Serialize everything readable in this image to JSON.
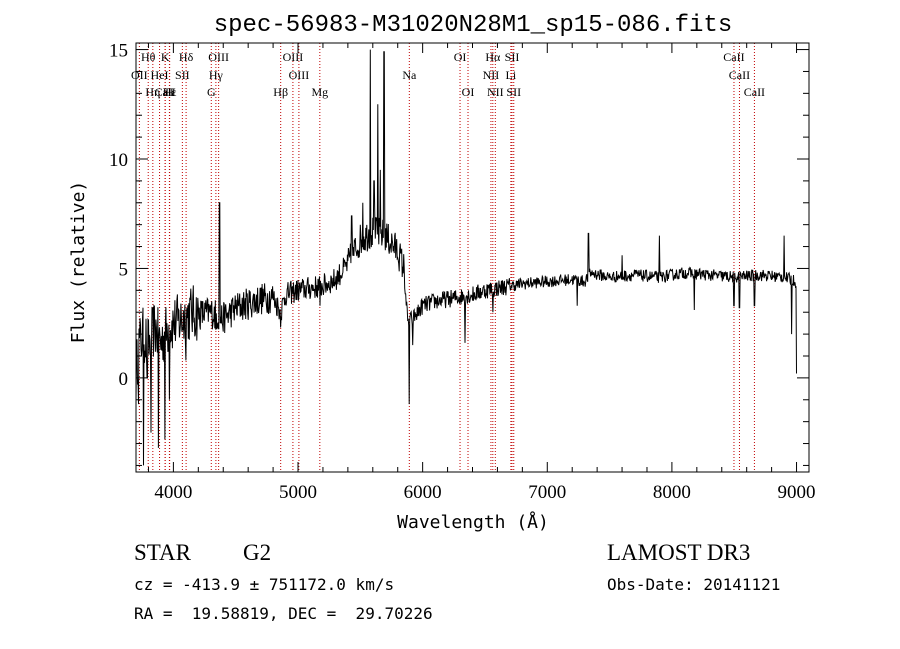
{
  "info": {
    "class_label": "STAR",
    "subclass": "G2",
    "survey": "LAMOST DR3",
    "cz_text": "cz = -413.9 ± 751172.0 km/s",
    "obs_date_text": "Obs-Date: 20141121",
    "radec_text": "RA =  19.58819, DEC =  29.70226"
  },
  "chart_data": {
    "type": "line",
    "title": "spec-56983-M31020N28M1_sp15-086.fits",
    "xlabel": "Wavelength (Å)",
    "ylabel": "Flux (relative)",
    "xlim": [
      3700,
      9100
    ],
    "ylim": [
      -4.3,
      15.3
    ],
    "xticks": [
      4000,
      5000,
      6000,
      7000,
      8000,
      9000
    ],
    "yticks": [
      0,
      5,
      10,
      15
    ],
    "spectrum_anchors": [
      [
        3700,
        0.0
      ],
      [
        3720,
        1.5
      ],
      [
        3760,
        2.0
      ],
      [
        3800,
        1.5
      ],
      [
        3850,
        2.3
      ],
      [
        3900,
        1.6
      ],
      [
        3950,
        2.2
      ],
      [
        4000,
        2.5
      ],
      [
        4050,
        2.6
      ],
      [
        4100,
        2.8
      ],
      [
        4150,
        3.0
      ],
      [
        4200,
        2.9
      ],
      [
        4300,
        3.0
      ],
      [
        4400,
        2.7
      ],
      [
        4500,
        3.2
      ],
      [
        4600,
        3.4
      ],
      [
        4700,
        3.6
      ],
      [
        4800,
        3.7
      ],
      [
        4860,
        3.0
      ],
      [
        4900,
        3.8
      ],
      [
        5000,
        4.0
      ],
      [
        5100,
        4.1
      ],
      [
        5200,
        4.2
      ],
      [
        5300,
        4.5
      ],
      [
        5400,
        5.2
      ],
      [
        5500,
        6.3
      ],
      [
        5600,
        6.7
      ],
      [
        5700,
        6.5
      ],
      [
        5800,
        5.8
      ],
      [
        5850,
        5.0
      ],
      [
        5880,
        2.5
      ],
      [
        5950,
        2.9
      ],
      [
        6000,
        3.3
      ],
      [
        6100,
        3.5
      ],
      [
        6200,
        3.6
      ],
      [
        6300,
        3.7
      ],
      [
        6400,
        3.8
      ],
      [
        6500,
        4.0
      ],
      [
        6600,
        4.1
      ],
      [
        6700,
        4.2
      ],
      [
        6800,
        4.3
      ],
      [
        7000,
        4.4
      ],
      [
        7200,
        4.5
      ],
      [
        7300,
        4.4
      ],
      [
        7350,
        4.8
      ],
      [
        7500,
        4.6
      ],
      [
        7700,
        4.7
      ],
      [
        7900,
        4.6
      ],
      [
        8100,
        4.8
      ],
      [
        8300,
        4.7
      ],
      [
        8500,
        4.6
      ],
      [
        8700,
        4.7
      ],
      [
        8900,
        4.6
      ],
      [
        9000,
        4.4
      ]
    ],
    "spectrum_features": [
      [
        3720,
        -1.2
      ],
      [
        3760,
        -4.0
      ],
      [
        3790,
        0.0
      ],
      [
        3820,
        -2.5
      ],
      [
        3880,
        -3.2
      ],
      [
        3933,
        -2.8
      ],
      [
        3968,
        -1.0
      ],
      [
        4101,
        0.8
      ],
      [
        4340,
        2.2
      ],
      [
        4370,
        8.0
      ],
      [
        4861,
        2.3
      ],
      [
        5175,
        3.3
      ],
      [
        5430,
        7.4
      ],
      [
        5520,
        8.0
      ],
      [
        5580,
        15.0
      ],
      [
        5610,
        9.0
      ],
      [
        5640,
        12.5
      ],
      [
        5660,
        9.5
      ],
      [
        5690,
        14.9
      ],
      [
        5893,
        -1.2
      ],
      [
        5920,
        1.5
      ],
      [
        6340,
        1.6
      ],
      [
        6563,
        3.0
      ],
      [
        7240,
        3.3
      ],
      [
        7330,
        6.6
      ],
      [
        7600,
        5.6
      ],
      [
        7900,
        6.5
      ],
      [
        8180,
        3.1
      ],
      [
        8498,
        3.3
      ],
      [
        8542,
        3.2
      ],
      [
        8662,
        3.3
      ],
      [
        8900,
        6.5
      ],
      [
        8960,
        2.0
      ],
      [
        9000,
        0.2
      ]
    ],
    "spectral_lines": [
      {
        "label": "Hθ",
        "wave": 3798,
        "row": 0
      },
      {
        "label": "K",
        "wave": 3934,
        "row": 0
      },
      {
        "label": "Hδ",
        "wave": 4102,
        "row": 0
      },
      {
        "label": "OIII",
        "wave": 4363,
        "row": 0
      },
      {
        "label": "OIII",
        "wave": 4959,
        "row": 0
      },
      {
        "label": "OI",
        "wave": 6300,
        "row": 0
      },
      {
        "label": "Hα",
        "wave": 6563,
        "row": 0
      },
      {
        "label": "SII",
        "wave": 6717,
        "row": 0
      },
      {
        "label": "CaII",
        "wave": 8498,
        "row": 0
      },
      {
        "label": "OII",
        "wave": 3727,
        "row": 1
      },
      {
        "label": "HeI",
        "wave": 3889,
        "row": 1
      },
      {
        "label": "SII",
        "wave": 4072,
        "row": 1
      },
      {
        "label": "Hγ",
        "wave": 4341,
        "row": 1
      },
      {
        "label": "OIII",
        "wave": 5007,
        "row": 1
      },
      {
        "label": "Na",
        "wave": 5893,
        "row": 1
      },
      {
        "label": "NII",
        "wave": 6548,
        "row": 1
      },
      {
        "label": "Li",
        "wave": 6708,
        "row": 1
      },
      {
        "label": "CaII",
        "wave": 8542,
        "row": 1
      },
      {
        "label": "CaII",
        "wave": 3934,
        "row": 2
      },
      {
        "label": "Hε",
        "wave": 3970,
        "row": 2
      },
      {
        "label": "Hη",
        "wave": 3835,
        "row": 2
      },
      {
        "label": "H",
        "wave": 3968,
        "row": 2
      },
      {
        "label": "G",
        "wave": 4304,
        "row": 2
      },
      {
        "label": "Hβ",
        "wave": 4861,
        "row": 2
      },
      {
        "label": "Mg",
        "wave": 5175,
        "row": 2
      },
      {
        "label": "OI",
        "wave": 6364,
        "row": 2
      },
      {
        "label": "NII",
        "wave": 6583,
        "row": 2
      },
      {
        "label": "SII",
        "wave": 6731,
        "row": 2
      },
      {
        "label": "CaII",
        "wave": 8662,
        "row": 2
      }
    ]
  }
}
